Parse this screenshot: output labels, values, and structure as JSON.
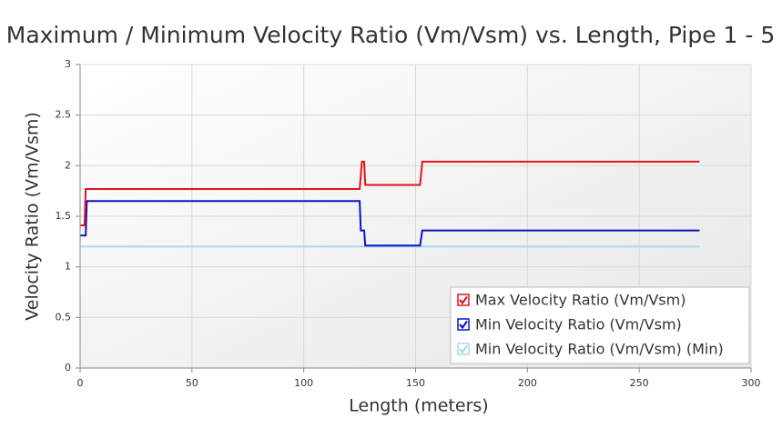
{
  "chart_data": {
    "type": "line",
    "title": "Maximum / Minimum Velocity Ratio (Vm/Vsm) vs. Length, Pipe 1 - 5",
    "x_label": "Length (meters)",
    "y_label": "Velocity Ratio (Vm/Vsm)",
    "x": [
      0,
      2,
      2.5,
      3,
      125,
      125.5,
      126,
      127,
      127.5,
      152,
      153,
      277
    ],
    "series": [
      {
        "name": "Max Velocity Ratio (Vm/Vsm)",
        "color": "#e0141c",
        "values": [
          1.41,
          1.41,
          1.77,
          1.77,
          1.77,
          1.9,
          2.04,
          2.04,
          1.81,
          1.81,
          2.04,
          2.04
        ]
      },
      {
        "name": "Min Velocity Ratio (Vm/Vsm)",
        "color": "#0c14c8",
        "values": [
          1.31,
          1.31,
          1.31,
          1.65,
          1.65,
          1.36,
          1.36,
          1.36,
          1.21,
          1.21,
          1.36,
          1.36
        ]
      },
      {
        "name": "Min Velocity Ratio (Vm/Vsm) (Min)",
        "color": "#add8ea",
        "values": [
          1.2,
          1.2,
          1.2,
          1.2,
          1.2,
          1.2,
          1.2,
          1.2,
          1.2,
          1.2,
          1.2,
          1.2
        ]
      }
    ],
    "xlim": [
      0,
      300
    ],
    "xticks": [
      0,
      50,
      100,
      150,
      200,
      250,
      300
    ],
    "ylim": [
      0,
      3
    ],
    "yticks": [
      0,
      0.5,
      1,
      1.5,
      2,
      2.5,
      3
    ],
    "grid": true,
    "legend": "bottom-right"
  }
}
